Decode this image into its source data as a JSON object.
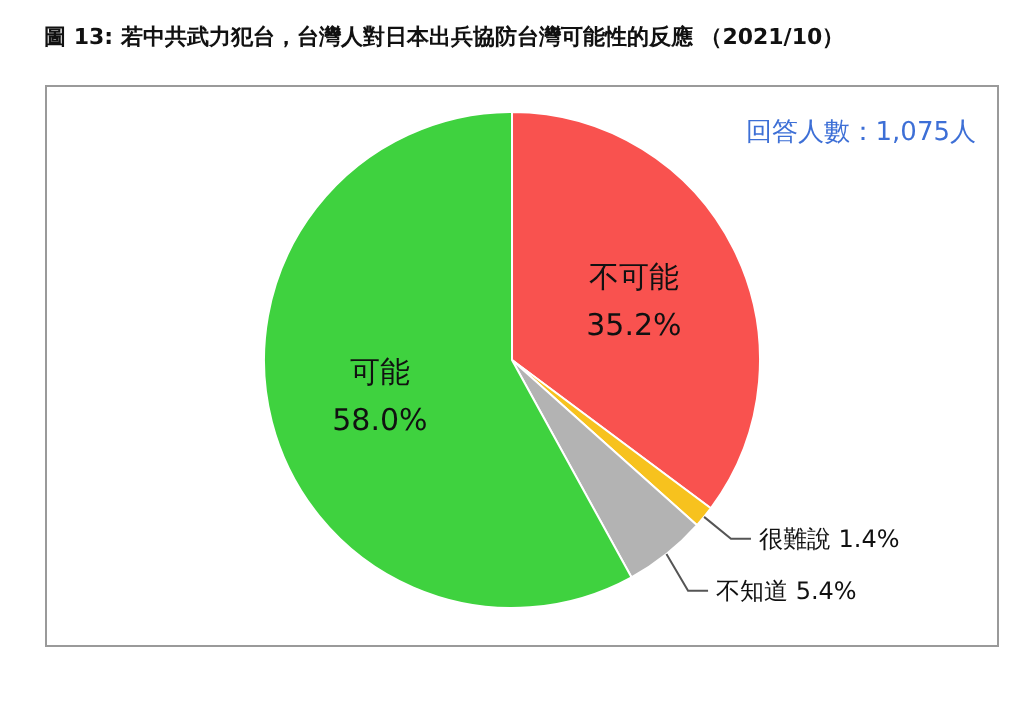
{
  "chart_data": {
    "type": "pie",
    "title": "圖 13: 若中共武力犯台，台灣人對日本出兵協防台灣可能性的反應 （2021/10）",
    "categories": [
      "不可能",
      "很難說",
      "不知道",
      "可能"
    ],
    "values": [
      35.2,
      1.4,
      5.4,
      58.0
    ],
    "value_labels": [
      "35.2%",
      "1.4%",
      "5.4%",
      "58.0%"
    ],
    "colors": [
      "#f9524f",
      "#f7c21e",
      "#b3b3b3",
      "#3fd23f"
    ],
    "annotations": [
      "回答人數：1,075人"
    ]
  }
}
